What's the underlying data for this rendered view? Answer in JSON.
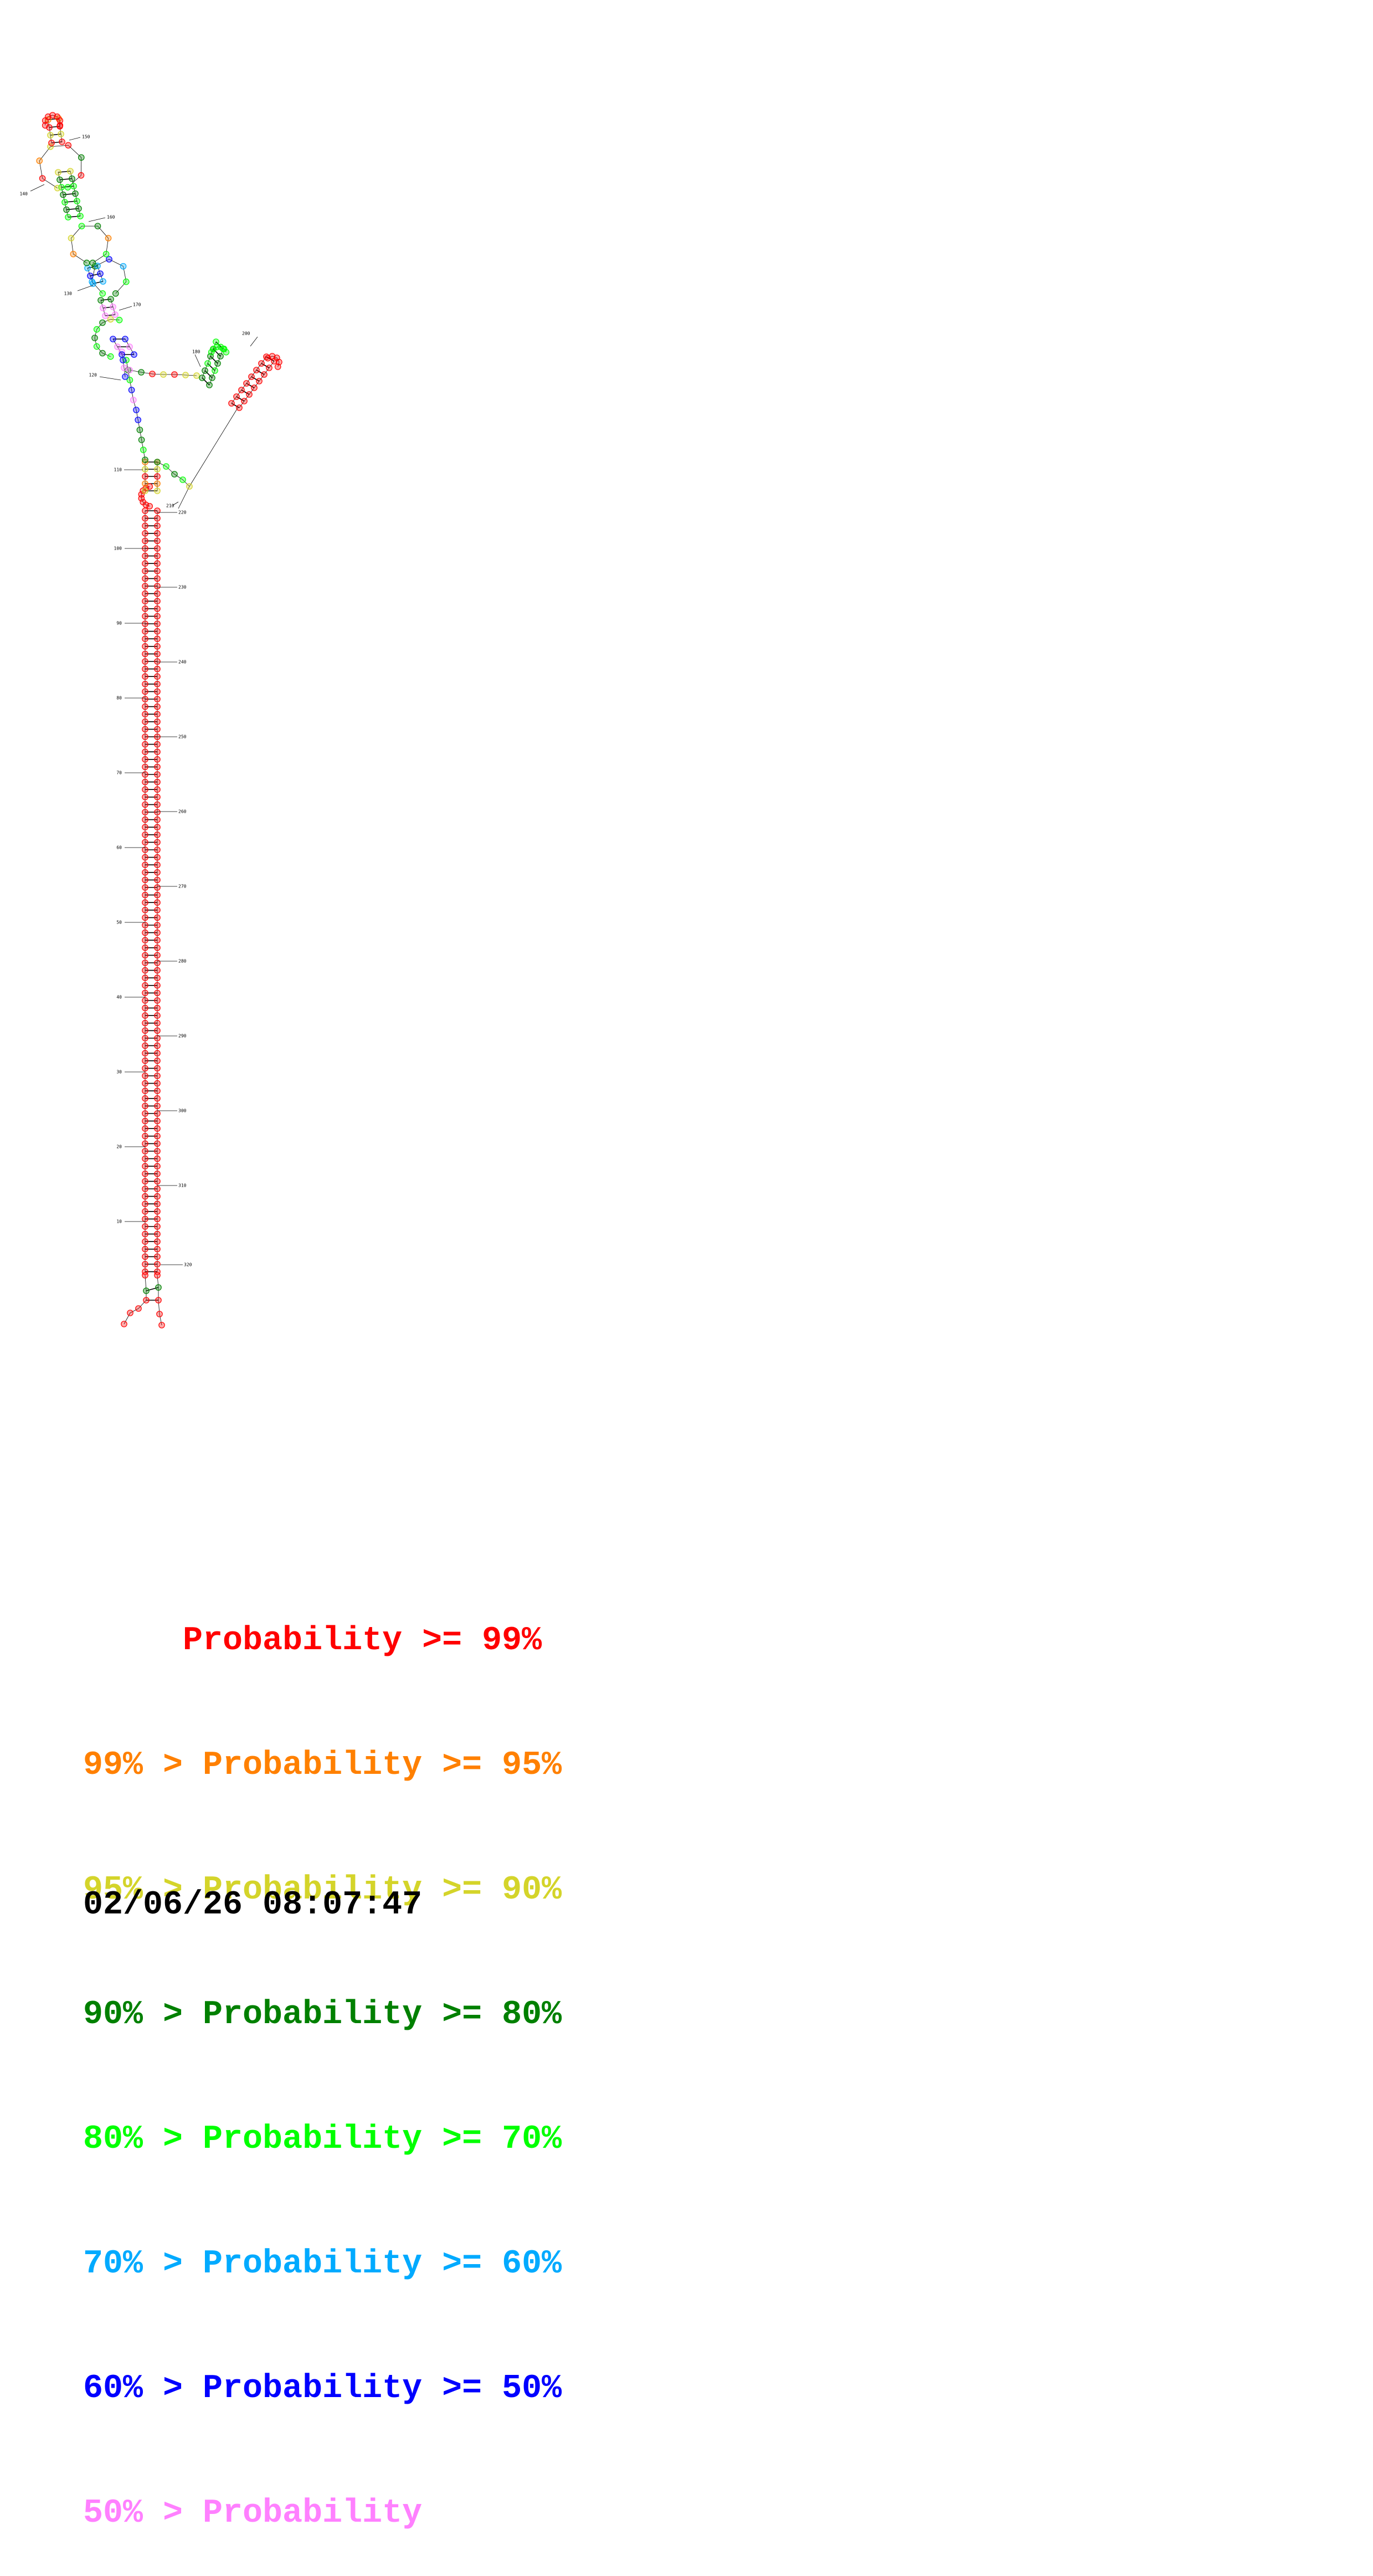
{
  "structure": {
    "tick_labels": [
      "10",
      "20",
      "30",
      "40",
      "50",
      "60",
      "70",
      "80",
      "90",
      "100",
      "110",
      "120",
      "130",
      "140",
      "150",
      "160",
      "170",
      "180",
      "200",
      "210",
      "220",
      "230",
      "240",
      "250",
      "260",
      "270",
      "280",
      "290",
      "300",
      "310",
      "320"
    ],
    "color_classes": [
      "#ff0000",
      "#ff8000",
      "#d4d42a",
      "#008000",
      "#00ff00",
      "#00aaff",
      "#0000ff",
      "#ff80ff"
    ],
    "line_color": "#000000"
  },
  "legend": [
    {
      "text": "     Probability >= 99%",
      "color": "#ff0000"
    },
    {
      "text": "99% > Probability >= 95%",
      "color": "#ff8000"
    },
    {
      "text": "95% > Probability >= 90%",
      "color": "#d4d42a"
    },
    {
      "text": "90% > Probability >= 80%",
      "color": "#008000"
    },
    {
      "text": "80% > Probability >= 70%",
      "color": "#00ff00"
    },
    {
      "text": "70% > Probability >= 60%",
      "color": "#00aaff"
    },
    {
      "text": "60% > Probability >= 50%",
      "color": "#0000ff"
    },
    {
      "text": "50% > Probability",
      "color": "#ff80ff"
    }
  ],
  "timestamp": "02/06/26 08:07:47"
}
